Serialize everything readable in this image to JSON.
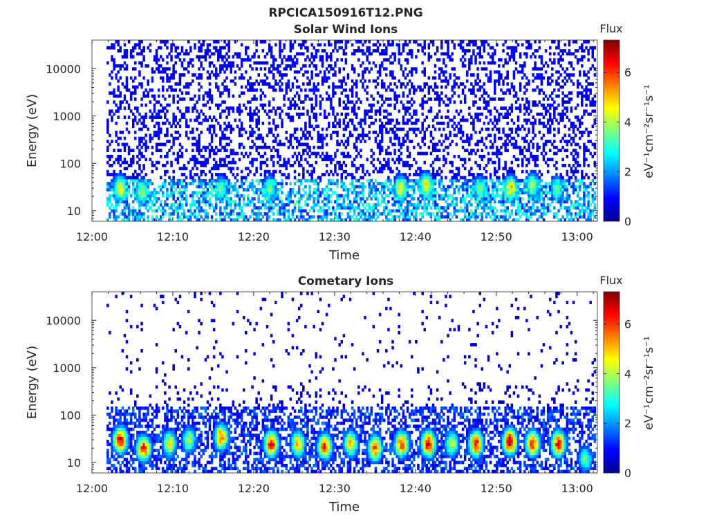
{
  "figure": {
    "title": "RPCICA150916T12.PNG"
  },
  "colormap": "jet",
  "chart_data": [
    {
      "type": "heatmap",
      "title": "Solar Wind Ions",
      "xlabel": "Time",
      "ylabel": "Energy (eV)",
      "x_range_minutes_after_1200": [
        0,
        62.5
      ],
      "x_ticks": [
        "12:00",
        "12:10",
        "12:20",
        "12:30",
        "12:40",
        "12:50",
        "13:00"
      ],
      "y_scale": "log",
      "y_range": [
        6,
        40000
      ],
      "y_ticks": [
        "10",
        "100",
        "1000",
        "10000"
      ],
      "colorbar": {
        "label": "Flux",
        "units": "eV⁻¹cm⁻²sr⁻¹s⁻¹",
        "range": [
          0,
          7.3
        ],
        "ticks": [
          "0",
          "2",
          "4",
          "6"
        ]
      },
      "data_start_minute": 1.8,
      "data_end_minute": 62.3,
      "background_low_energy_max_eV": 45,
      "background_low_energy_level": 2.2,
      "background_high_energy_level": 0.8,
      "bursts": [
        {
          "time": 3.5,
          "energy_eV": 30,
          "flux": 4.6
        },
        {
          "time": 6.2,
          "energy_eV": 25,
          "flux": 3.8
        },
        {
          "time": 16.0,
          "energy_eV": 30,
          "flux": 3.4
        },
        {
          "time": 22.0,
          "energy_eV": 30,
          "flux": 3.6
        },
        {
          "time": 38.2,
          "energy_eV": 30,
          "flux": 4.4
        },
        {
          "time": 41.3,
          "energy_eV": 35,
          "flux": 4.6
        },
        {
          "time": 48.0,
          "energy_eV": 30,
          "flux": 3.6
        },
        {
          "time": 51.8,
          "energy_eV": 30,
          "flux": 4.9
        },
        {
          "time": 54.5,
          "energy_eV": 35,
          "flux": 3.8
        },
        {
          "time": 57.5,
          "energy_eV": 30,
          "flux": 3.3
        }
      ]
    },
    {
      "type": "heatmap",
      "title": "Cometary Ions",
      "xlabel": "Time",
      "ylabel": "Energy (eV)",
      "x_range_minutes_after_1200": [
        0,
        62.5
      ],
      "x_ticks": [
        "12:00",
        "12:10",
        "12:20",
        "12:30",
        "12:40",
        "12:50",
        "13:00"
      ],
      "y_scale": "log",
      "y_range": [
        6,
        40000
      ],
      "y_ticks": [
        "10",
        "100",
        "1000",
        "10000"
      ],
      "colorbar": {
        "label": "Flux",
        "units": "eV⁻¹cm⁻²sr⁻¹s⁻¹",
        "range": [
          0,
          7.3
        ],
        "ticks": [
          "0",
          "2",
          "4",
          "6"
        ]
      },
      "data_start_minute": 1.8,
      "data_end_minute": 62.3,
      "background_low_energy_max_eV": 150,
      "background_low_energy_level": 1.2,
      "background_high_energy_level": 0.5,
      "bursts": [
        {
          "time": 3.5,
          "energy_eV": 30,
          "flux": 6.5
        },
        {
          "time": 6.4,
          "energy_eV": 20,
          "flux": 6.0
        },
        {
          "time": 9.6,
          "energy_eV": 25,
          "flux": 4.6
        },
        {
          "time": 12.0,
          "energy_eV": 30,
          "flux": 4.0
        },
        {
          "time": 16.0,
          "energy_eV": 35,
          "flux": 5.6
        },
        {
          "time": 22.2,
          "energy_eV": 25,
          "flux": 6.3
        },
        {
          "time": 25.5,
          "energy_eV": 25,
          "flux": 5.0
        },
        {
          "time": 28.8,
          "energy_eV": 22,
          "flux": 5.8
        },
        {
          "time": 32.0,
          "energy_eV": 25,
          "flux": 4.9
        },
        {
          "time": 35.0,
          "energy_eV": 20,
          "flux": 5.6
        },
        {
          "time": 38.3,
          "energy_eV": 25,
          "flux": 5.9
        },
        {
          "time": 41.6,
          "energy_eV": 25,
          "flux": 6.5
        },
        {
          "time": 44.5,
          "energy_eV": 25,
          "flux": 4.3
        },
        {
          "time": 47.5,
          "energy_eV": 25,
          "flux": 6.1
        },
        {
          "time": 51.7,
          "energy_eV": 28,
          "flux": 6.9
        },
        {
          "time": 54.5,
          "energy_eV": 25,
          "flux": 6.0
        },
        {
          "time": 57.7,
          "energy_eV": 25,
          "flux": 6.2
        },
        {
          "time": 61.0,
          "energy_eV": 12,
          "flux": 3.6
        }
      ]
    }
  ]
}
